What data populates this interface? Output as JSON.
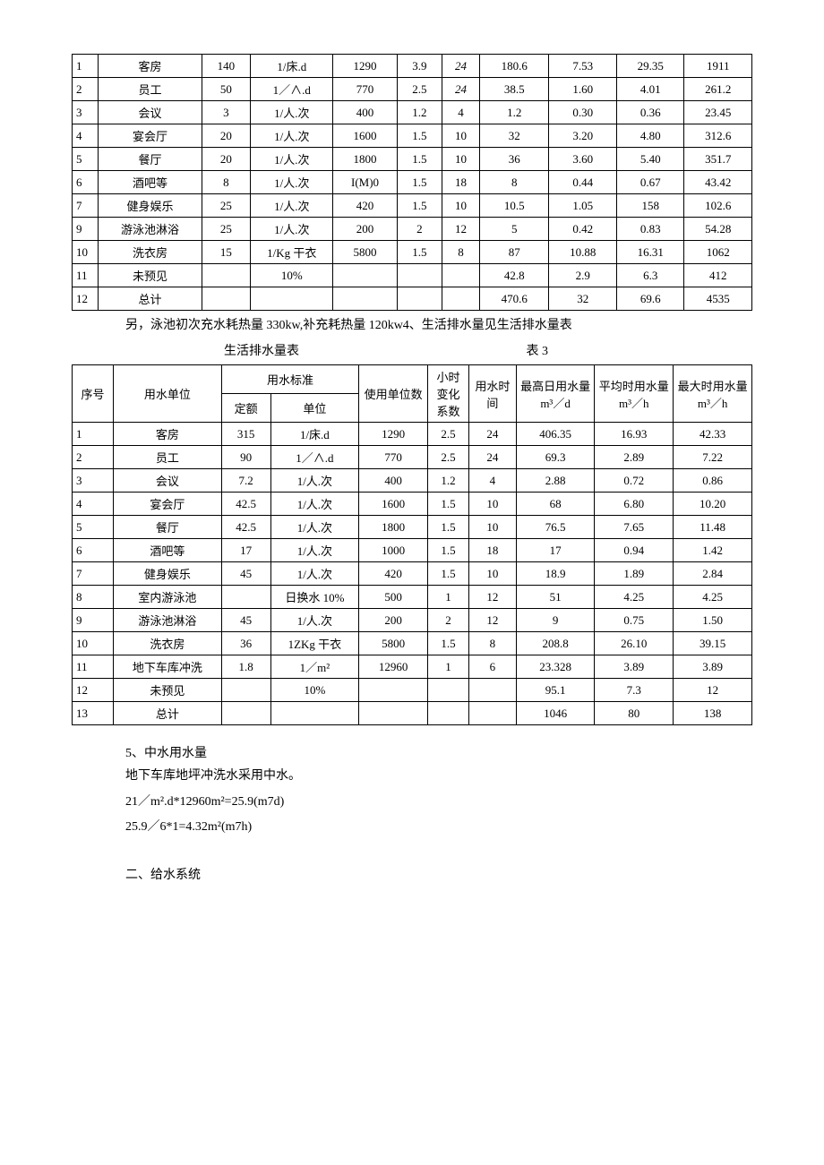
{
  "table1": {
    "rows": [
      [
        "1",
        "客房",
        "140",
        "1/床.d",
        "1290",
        "3.9",
        "24",
        "180.6",
        "7.53",
        "29.35",
        "1911"
      ],
      [
        "2",
        "员工",
        "50",
        "1／∧.d",
        "770",
        "2.5",
        "24",
        "38.5",
        "1.60",
        "4.01",
        "261.2"
      ],
      [
        "3",
        "会议",
        "3",
        "1/人.次",
        "400",
        "1.2",
        "4",
        "1.2",
        "0.30",
        "0.36",
        "23.45"
      ],
      [
        "4",
        "宴会厅",
        "20",
        "1/人.次",
        "1600",
        "1.5",
        "10",
        "32",
        "3.20",
        "4.80",
        "312.6"
      ],
      [
        "5",
        "餐厅",
        "20",
        "1/人.次",
        "1800",
        "1.5",
        "10",
        "36",
        "3.60",
        "5.40",
        "351.7"
      ],
      [
        "6",
        "酒吧等",
        "8",
        "1/人.次",
        "I(M)0",
        "1.5",
        "18",
        "8",
        "0.44",
        "0.67",
        "43.42"
      ],
      [
        "7",
        "健身娱乐",
        "25",
        "1/人.次",
        "420",
        "1.5",
        "10",
        "10.5",
        "1.05",
        "158",
        "102.6"
      ],
      [
        "9",
        "游泳池淋浴",
        "25",
        "1/人.次",
        "200",
        "2",
        "12",
        "5",
        "0.42",
        "0.83",
        "54.28"
      ],
      [
        "10",
        "洗衣房",
        "15",
        "1/Kg 干衣",
        "5800",
        "1.5",
        "8",
        "87",
        "10.88",
        "16.31",
        "1062"
      ],
      [
        "11",
        "未预见",
        "",
        "10%",
        "",
        "",
        "",
        "42.8",
        "2.9",
        "6.3",
        "412"
      ],
      [
        "12",
        "总计",
        "",
        "",
        "",
        "",
        "",
        "470.6",
        "32",
        "69.6",
        "4535"
      ]
    ],
    "italicCells": [
      [
        0,
        6
      ],
      [
        1,
        6
      ]
    ]
  },
  "note1": "另，泳池初次充水耗热量 330kw,补充耗热量 120kw4、生活排水量见生活排水量表",
  "table2title": "生活排水量表",
  "table2label": "表 3",
  "table2": {
    "headers": {
      "seq": "序号",
      "unit": "用水单位",
      "standard": "用水标准",
      "quota": "定额",
      "unitcol": "单位",
      "usecount": "使用单位数",
      "hourly": "小时变化系数",
      "usetime": "用水时间",
      "maxday": "最高日用水量",
      "maxdayunit": "m³／d",
      "avghour": "平均时用水量",
      "avghourunit": "m³／h",
      "maxhour": "最大时用水量",
      "maxhourunit": "m³／h"
    },
    "rows": [
      [
        "1",
        "客房",
        "315",
        "1/床.d",
        "1290",
        "2.5",
        "24",
        "406.35",
        "16.93",
        "42.33"
      ],
      [
        "2",
        "员工",
        "90",
        "1／∧.d",
        "770",
        "2.5",
        "24",
        "69.3",
        "2.89",
        "7.22"
      ],
      [
        "3",
        "会议",
        "7.2",
        "1/人.次",
        "400",
        "1.2",
        "4",
        "2.88",
        "0.72",
        "0.86"
      ],
      [
        "4",
        "宴会厅",
        "42.5",
        "1/人.次",
        "1600",
        "1.5",
        "10",
        "68",
        "6.80",
        "10.20"
      ],
      [
        "5",
        "餐厅",
        "42.5",
        "1/人.次",
        "1800",
        "1.5",
        "10",
        "76.5",
        "7.65",
        "11.48"
      ],
      [
        "6",
        "酒吧等",
        "17",
        "1/人.次",
        "1000",
        "1.5",
        "18",
        "17",
        "0.94",
        "1.42"
      ],
      [
        "7",
        "健身娱乐",
        "45",
        "1/人.次",
        "420",
        "1.5",
        "10",
        "18.9",
        "1.89",
        "2.84"
      ],
      [
        "8",
        "室内游泳池",
        "",
        "日换水 10%",
        "500",
        "1",
        "12",
        "51",
        "4.25",
        "4.25"
      ],
      [
        "9",
        "游泳池淋浴",
        "45",
        "1/人.次",
        "200",
        "2",
        "12",
        "9",
        "0.75",
        "1.50"
      ],
      [
        "10",
        "洗衣房",
        "36",
        "1ZKg 干衣",
        "5800",
        "1.5",
        "8",
        "208.8",
        "26.10",
        "39.15"
      ],
      [
        "11",
        "地下车库冲洗",
        "1.8",
        "1／m²",
        "12960",
        "1",
        "6",
        "23.328",
        "3.89",
        "3.89"
      ],
      [
        "12",
        "未预见",
        "",
        "10%",
        "",
        "",
        "",
        "95.1",
        "7.3",
        "12"
      ],
      [
        "13",
        "总计",
        "",
        "",
        "",
        "",
        "",
        "1046",
        "80",
        "138"
      ]
    ]
  },
  "section5": {
    "heading": "5、中水用水量",
    "line1": "地下车库地坪冲洗水采用中水。",
    "line2": "21／m².d*12960m²=25.9(m7d)",
    "line3": "25.9／6*1=4.32m²(m7h)"
  },
  "section2heading": "二、给水系统",
  "colWidths1": [
    "28",
    "110",
    "52",
    "88",
    "68",
    "48",
    "40",
    "74",
    "72",
    "72",
    "72"
  ],
  "colWidths2": [
    "42",
    "110",
    "50",
    "90",
    "70",
    "42",
    "48",
    "80",
    "80",
    "80"
  ]
}
